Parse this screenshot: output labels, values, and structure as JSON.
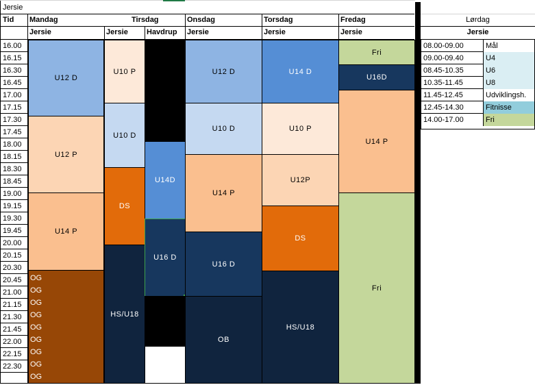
{
  "title": "Jersie",
  "header": {
    "tid": "Tid",
    "days": [
      "Mandag",
      "Tirsdag",
      "Onsdag",
      "Torsdag",
      "Fredag"
    ],
    "saturday": "Lørdag",
    "venues": {
      "mandag": "Jersie",
      "tirsdag_a": "Jersie",
      "tirsdag_b": "Havdrup",
      "onsdag": "Jersie",
      "torsdag": "Jersie",
      "fredag": "Jersie",
      "lordag": "Jersie"
    }
  },
  "times": [
    "16.00",
    "16.15",
    "16.30",
    "16.45",
    "17.00",
    "17.15",
    "17.30",
    "17.45",
    "18.00",
    "18.15",
    "18.30",
    "18.45",
    "19.00",
    "19.15",
    "19.30",
    "19.45",
    "20.00",
    "20.15",
    "20.30",
    "20.45",
    "21.00",
    "21.15",
    "21.30",
    "21.45",
    "22.00",
    "22.15",
    "22.30"
  ],
  "og_label": "OG",
  "blocks": {
    "mon_u12d": "U12 D",
    "mon_u12p": "U12 P",
    "mon_u14p": "U14 P",
    "tue_u10p": "U10 P",
    "tue_u10d": "U10 D",
    "tue_ds": "DS",
    "tue_hsu18": "HS/U18",
    "tue_u14d": "U14D",
    "tue_u16d": "U16 D",
    "wed_u12d": "U12 D",
    "wed_u10d": "U10 D",
    "wed_u14p": "U14 P",
    "wed_u16d": "U16 D",
    "wed_ob": "OB",
    "thu_u14d": "U14 D",
    "thu_u10p": "U10 P",
    "thu_u12p": "U12P",
    "thu_ds": "DS",
    "thu_hsu18": "HS/U18",
    "fri_fri1": "Fri",
    "fri_u16d": "U16D",
    "fri_u14p": "U14 P",
    "fri_fri2": "Fri"
  },
  "saturday_schedule": [
    {
      "time": "08.00-09.00",
      "activity": "Mål",
      "color": "#ffffff"
    },
    {
      "time": "09.00-09.40",
      "activity": "U4",
      "color": "#daeef3"
    },
    {
      "time": "08.45-10.35",
      "activity": "U6",
      "color": "#daeef3"
    },
    {
      "time": "10.35-11.45",
      "activity": "U8",
      "color": "#daeef3"
    },
    {
      "time": "11.45-12.45",
      "activity": "Udviklingsh.",
      "color": "#ffffff"
    },
    {
      "time": "12.45-14.30",
      "activity": "Fitnisse",
      "color": "#92cddc"
    },
    {
      "time": "14.00-17.00",
      "activity": "Fri",
      "color": "#c4d79b"
    }
  ],
  "colors": {
    "light_blue": "#8eb4e3",
    "mid_blue": "#558ed5",
    "pale_blue": "#c5d9f1",
    "peach_light": "#fde9d9",
    "peach": "#fcd5b4",
    "salmon": "#fabf8f",
    "orange": "#e26b0a",
    "navy": "#17375e",
    "dark_navy": "#10243e",
    "brown": "#974706",
    "green": "#c4d79b",
    "black": "#000000"
  }
}
